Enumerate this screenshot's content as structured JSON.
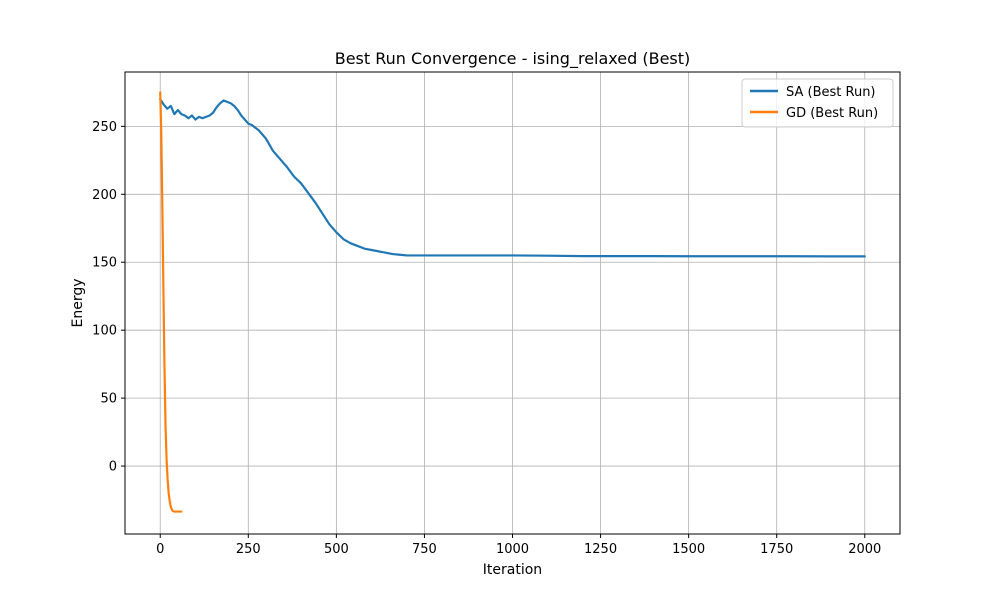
{
  "chart_data": {
    "type": "line",
    "title": "Best Run Convergence - ising_relaxed (Best)",
    "xlabel": "Iteration",
    "ylabel": "Energy",
    "xlim": [
      -100,
      2100
    ],
    "ylim": [
      -50,
      290
    ],
    "xticks": [
      0,
      250,
      500,
      750,
      1000,
      1250,
      1500,
      1750,
      2000
    ],
    "yticks": [
      0,
      50,
      100,
      150,
      200,
      250
    ],
    "grid": true,
    "legend_position": "top-right",
    "series": [
      {
        "name": "SA (Best Run)",
        "color": "#1f77b4",
        "x": [
          0,
          10,
          20,
          30,
          40,
          50,
          60,
          70,
          80,
          90,
          100,
          110,
          120,
          130,
          140,
          150,
          160,
          170,
          180,
          190,
          200,
          210,
          220,
          230,
          240,
          250,
          260,
          270,
          280,
          290,
          300,
          320,
          340,
          360,
          380,
          400,
          420,
          440,
          460,
          480,
          500,
          520,
          540,
          560,
          580,
          600,
          620,
          640,
          660,
          680,
          700,
          750,
          800,
          900,
          1000,
          1100,
          1200,
          1300,
          1400,
          1500,
          1600,
          1700,
          1800,
          1900,
          2000
        ],
        "y": [
          270,
          266,
          263,
          265,
          259,
          262,
          259,
          258,
          256,
          258,
          255,
          257,
          256,
          257,
          258,
          260,
          264,
          267,
          269,
          268,
          267,
          265,
          262,
          258,
          255,
          252,
          251,
          249,
          247,
          244,
          241,
          232,
          226,
          220,
          213,
          208,
          201,
          194,
          186,
          178,
          172,
          167,
          164,
          162,
          160,
          159,
          158,
          157,
          156,
          155.5,
          155,
          155,
          155,
          155,
          155,
          154.8,
          154.5,
          154.5,
          154.5,
          154.4,
          154.4,
          154.4,
          154.4,
          154.3,
          154.3
        ]
      },
      {
        "name": "GD (Best Run)",
        "color": "#ff7f0e",
        "x": [
          0,
          3,
          6,
          9,
          12,
          15,
          18,
          21,
          24,
          27,
          30,
          35,
          40,
          45,
          50,
          55,
          60
        ],
        "y": [
          275,
          245,
          190,
          130,
          75,
          30,
          5,
          -10,
          -20,
          -26,
          -30,
          -33,
          -33.5,
          -33.5,
          -33.5,
          -33.5,
          -33.5
        ]
      }
    ]
  }
}
